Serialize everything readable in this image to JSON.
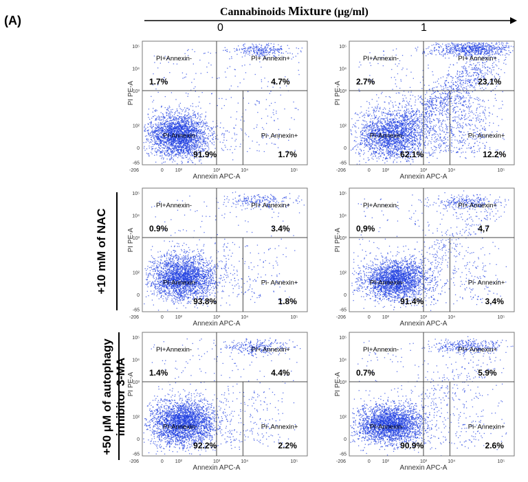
{
  "figure": {
    "panel_label": "(A)",
    "header": {
      "part1": "Cannabinoids",
      "part2": "Mixture",
      "part3": "(μg/ml)",
      "doses": [
        "0",
        "1"
      ]
    },
    "row_labels": [
      "",
      "+10 mM of NAC",
      "+50 μM of autophagy inhibitor 3-MA"
    ],
    "colors": {
      "dots": "#1f3fe0",
      "text": "#000000",
      "axis": "#555555"
    }
  },
  "chart_data": [
    {
      "type": "scatter",
      "row": 0,
      "col": 0,
      "xlabel": "Annexin APC-A",
      "ylabel": "PI PE-A",
      "x_ticks": [
        "-206",
        "0",
        "10²",
        "10³",
        "10⁴",
        "10⁵"
      ],
      "y_ticks": [
        "-65",
        "0",
        "10²",
        "10³",
        "10⁴",
        "10⁵"
      ],
      "gate_labels": [
        "PI+Annexin-",
        "PI+ Annexin+",
        "PI-Annexin-",
        "Pi- Annexin+"
      ],
      "quadrants": {
        "upper_left": "1.7%",
        "upper_right": "4.7%",
        "lower_left": "91.9%",
        "lower_right": "1.7%"
      }
    },
    {
      "type": "scatter",
      "row": 0,
      "col": 1,
      "xlabel": "Annexin APC-A",
      "ylabel": "PI PE-A",
      "x_ticks": [
        "-206",
        "0",
        "10²",
        "10³",
        "10⁴",
        "10⁵"
      ],
      "y_ticks": [
        "-65",
        "0",
        "10²",
        "10³",
        "10⁴",
        "10⁵"
      ],
      "gate_labels": [
        "PI+Annexin-",
        "PI+ Annexin+",
        "PI-Annexin-",
        "Pi- Annexin+"
      ],
      "quadrants": {
        "upper_left": "2.7%",
        "upper_right": "23.1%",
        "lower_left": "62.1%",
        "lower_right": "12.2%"
      }
    },
    {
      "type": "scatter",
      "row": 1,
      "col": 0,
      "xlabel": "Annexin APC-A",
      "ylabel": "PI PE-A",
      "x_ticks": [
        "-206",
        "0",
        "10²",
        "10³",
        "10⁴",
        "10⁵"
      ],
      "y_ticks": [
        "-65",
        "0",
        "10²",
        "10³",
        "10⁴",
        "10⁵"
      ],
      "gate_labels": [
        "PI+Annexin-",
        "PI+ Annexin+",
        "PI-Annexin-",
        "Pi- Annexin+"
      ],
      "quadrants": {
        "upper_left": "0.9%",
        "upper_right": "3.4%",
        "lower_left": "93.8%",
        "lower_right": "1.8%"
      }
    },
    {
      "type": "scatter",
      "row": 1,
      "col": 1,
      "xlabel": "Annexin APC-A",
      "ylabel": "PI PE-A",
      "x_ticks": [
        "-206",
        "0",
        "10²",
        "10³",
        "10⁴",
        "10⁵"
      ],
      "y_ticks": [
        "-65",
        "0",
        "10²",
        "10³",
        "10⁴",
        "10⁵"
      ],
      "gate_labels": [
        "PI+Annexin-",
        "PI+ Annexin+",
        "PI-Annexin-",
        "Pi- Annexin+"
      ],
      "quadrants": {
        "upper_left": "0,9%",
        "upper_right": "4,7",
        "lower_left": "91.4%",
        "lower_right": "3.4%"
      }
    },
    {
      "type": "scatter",
      "row": 2,
      "col": 0,
      "xlabel": "Annexin APC-A",
      "ylabel": "PI PE-A",
      "x_ticks": [
        "-206",
        "0",
        "10²",
        "10³",
        "10⁴",
        "10⁵"
      ],
      "y_ticks": [
        "-65",
        "0",
        "10²",
        "10³",
        "10⁴",
        "10⁵"
      ],
      "gate_labels": [
        "PI+Annexin-",
        "PI+ Annexin+",
        "PI-Annexin-",
        "Pi- Annexin+"
      ],
      "quadrants": {
        "upper_left": "1.4%",
        "upper_right": "4.4%",
        "lower_left": "92.2%",
        "lower_right": "2.2%"
      }
    },
    {
      "type": "scatter",
      "row": 2,
      "col": 1,
      "xlabel": "Annexin APC-A",
      "ylabel": "PI PE-A",
      "x_ticks": [
        "-206",
        "0",
        "10²",
        "10³",
        "10⁴",
        "10⁵"
      ],
      "y_ticks": [
        "-65",
        "0",
        "10²",
        "10³",
        "10⁴",
        "10⁵"
      ],
      "gate_labels": [
        "PI+Annexin-",
        "PI+ Annexin+",
        "PI-Annexin-",
        "Pi- Annexin+"
      ],
      "quadrants": {
        "upper_left": "0.7%",
        "upper_right": "5.9%",
        "lower_left": "90.9%",
        "lower_right": "2.6%"
      }
    }
  ]
}
